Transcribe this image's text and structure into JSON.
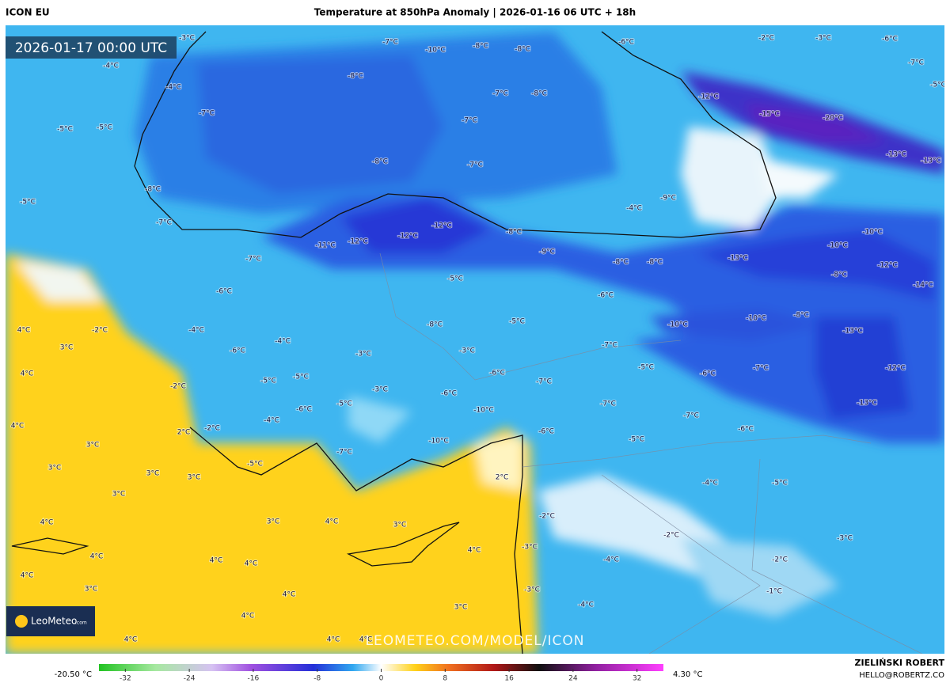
{
  "header": {
    "model": "ICON EU",
    "title": "Temperature at 850hPa Anomaly | 2026-01-16 06 UTC + 18h"
  },
  "valid_time": "2026-01-17 00:00 UTC",
  "logo": {
    "name": "LeoMeteo",
    "suffix": ".com"
  },
  "watermark": "LEOMETEO.COM/MODEL/ICON",
  "author": {
    "name": "ZIELIŃSKI ROBERT",
    "email": "HELLO@ROBERTZ.CO"
  },
  "colorbar": {
    "min_label": "-20.50 °C",
    "max_label": "4.30 °C",
    "range": [
      -35.3,
      35.3
    ],
    "ticks": [
      -32,
      -24,
      -16,
      -8,
      0,
      8,
      16,
      24,
      32
    ]
  },
  "map_labels": [
    "-7°C",
    "-10°C",
    "-8°C",
    "-8°C",
    "-6°C",
    "-2°C",
    "-3°C",
    "-6°C",
    "-3°C",
    "-7°C",
    "-4°C",
    "-8°C",
    "-4°C",
    "-7°C",
    "-8°C",
    "-5°C",
    "-12°C",
    "-5°C",
    "-5°C",
    "-7°C",
    "-7°C",
    "-15°C",
    "-20°C",
    "-8°C",
    "-7°C",
    "-13°C",
    "-13°C",
    "-8°C",
    "-5°C",
    "-9°C",
    "-4°C",
    "-7°C",
    "-12°C",
    "-8°C",
    "-10°C",
    "-11°C",
    "-12°C",
    "-12°C",
    "-10°C",
    "-7°C",
    "-9°C",
    "-8°C",
    "-8°C",
    "-13°C",
    "-12°C",
    "-5°C",
    "-8°C",
    "-14°C",
    "-6°C",
    "-6°C",
    "-10°C",
    "-10°C",
    "-8°C",
    "-13°C",
    "-8°C",
    "-5°C",
    "4°C",
    "-2°C",
    "-4°C",
    "3°C",
    "-6°C",
    "-4°C",
    "-3°C",
    "-3°C",
    "-7°C",
    "-12°C",
    "4°C",
    "-5°C",
    "-6°C",
    "-5°C",
    "-6°C",
    "-7°C",
    "-5°C",
    "-3°C",
    "-7°C",
    "-2°C",
    "-6°C",
    "-13°C",
    "4°C",
    "-5°C",
    "-6°C",
    "-7°C",
    "-10°C",
    "-7°C",
    "-4°C",
    "2°C",
    "-2°C",
    "-6°C",
    "-10°C",
    "-6°C",
    "-5°C",
    "3°C",
    "-7°C",
    "3°C",
    "-5°C",
    "3°C",
    "3°C",
    "2°C",
    "-4°C",
    "-5°C",
    "3°C",
    "4°C",
    "3°C",
    "4°C",
    "3°C",
    "-2°C",
    "-2°C",
    "-3°C",
    "4°C",
    "-3°C",
    "4°C",
    "4°C",
    "4°C",
    "-4°C",
    "-2°C",
    "4°C",
    "3°C",
    "4°C",
    "-3°C",
    "-1°C",
    "3°C",
    "-4°C",
    "4°C",
    "4°C",
    "4°C",
    "4°C"
  ]
}
